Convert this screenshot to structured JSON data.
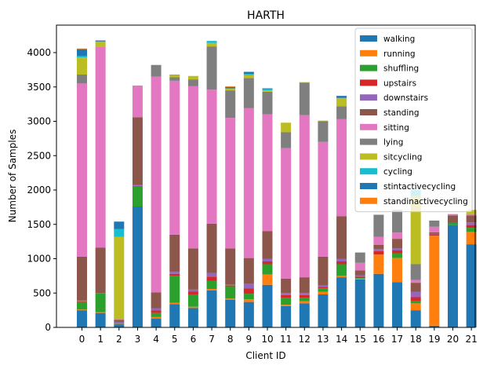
{
  "chart_data": {
    "type": "bar",
    "stacked": true,
    "title": "HARTH",
    "xlabel": "Client ID",
    "ylabel": "Number of Samples",
    "ylim": [
      0,
      4400
    ],
    "yticks": [
      0,
      500,
      1000,
      1500,
      2000,
      2500,
      3000,
      3500,
      4000
    ],
    "grid": false,
    "legend_position": "top-right",
    "categories": [
      "0",
      "1",
      "2",
      "3",
      "4",
      "5",
      "6",
      "7",
      "8",
      "9",
      "10",
      "11",
      "12",
      "13",
      "14",
      "15",
      "16",
      "17",
      "18",
      "19",
      "20",
      "21"
    ],
    "series": [
      {
        "name": "walking",
        "color": "#1f77b4",
        "values": [
          250,
          210,
          50,
          1760,
          130,
          340,
          280,
          540,
          400,
          370,
          620,
          310,
          350,
          480,
          730,
          700,
          780,
          660,
          250,
          25,
          1490,
          1210
        ]
      },
      {
        "name": "running",
        "color": "#ff7f0e",
        "values": [
          10,
          10,
          5,
          0,
          20,
          20,
          20,
          20,
          20,
          40,
          150,
          20,
          30,
          40,
          20,
          10,
          280,
          350,
          100,
          1310,
          0,
          180
        ]
      },
      {
        "name": "shuffling",
        "color": "#2ca02c",
        "values": [
          110,
          280,
          5,
          290,
          60,
          390,
          180,
          120,
          180,
          80,
          150,
          100,
          50,
          50,
          170,
          10,
          0,
          70,
          30,
          0,
          30,
          60
        ]
      },
      {
        "name": "upstairs",
        "color": "#d62728",
        "values": [
          10,
          0,
          10,
          10,
          40,
          30,
          40,
          60,
          10,
          80,
          40,
          40,
          40,
          20,
          40,
          20,
          50,
          40,
          60,
          20,
          10,
          40
        ]
      },
      {
        "name": "downstairs",
        "color": "#9467bd",
        "values": [
          10,
          0,
          10,
          10,
          30,
          30,
          30,
          50,
          10,
          70,
          40,
          30,
          30,
          20,
          40,
          20,
          30,
          30,
          80,
          10,
          0,
          40
        ]
      },
      {
        "name": "standing",
        "color": "#8c564b",
        "values": [
          640,
          660,
          30,
          990,
          230,
          540,
          600,
          720,
          530,
          370,
          400,
          210,
          230,
          420,
          620,
          70,
          60,
          140,
          130,
          20,
          100,
          100
        ]
      },
      {
        "name": "sitting",
        "color": "#e377c2",
        "values": [
          2520,
          2930,
          10,
          460,
          3140,
          2240,
          2360,
          1950,
          1900,
          2180,
          1700,
          1900,
          2360,
          1670,
          1410,
          110,
          120,
          90,
          40,
          80,
          20,
          20
        ]
      },
      {
        "name": "lying",
        "color": "#7f7f7f",
        "values": [
          130,
          0,
          0,
          0,
          170,
          50,
          100,
          630,
          400,
          440,
          330,
          230,
          470,
          300,
          190,
          150,
          320,
          330,
          230,
          90,
          0,
          0
        ]
      },
      {
        "name": "sitcycling",
        "color": "#bcbd22",
        "values": [
          250,
          70,
          1200,
          0,
          0,
          30,
          50,
          50,
          30,
          40,
          20,
          140,
          10,
          10,
          120,
          0,
          0,
          0,
          990,
          0,
          0,
          60
        ]
      },
      {
        "name": "cycling",
        "color": "#17becf",
        "values": [
          20,
          0,
          110,
          0,
          0,
          10,
          0,
          30,
          0,
          20,
          20,
          0,
          0,
          0,
          0,
          0,
          0,
          0,
          90,
          0,
          0,
          0
        ]
      },
      {
        "name": "stintactivecycling",
        "color": "#1f77b4",
        "values": [
          100,
          10,
          110,
          0,
          0,
          0,
          0,
          0,
          20,
          30,
          10,
          0,
          0,
          0,
          30,
          0,
          0,
          0,
          0,
          0,
          0,
          0
        ]
      },
      {
        "name": "standinactivecycling",
        "color": "#ff7f0e",
        "values": [
          10,
          10,
          0,
          0,
          0,
          0,
          0,
          0,
          10,
          0,
          0,
          0,
          0,
          0,
          0,
          0,
          0,
          0,
          0,
          0,
          0,
          0
        ]
      }
    ]
  }
}
